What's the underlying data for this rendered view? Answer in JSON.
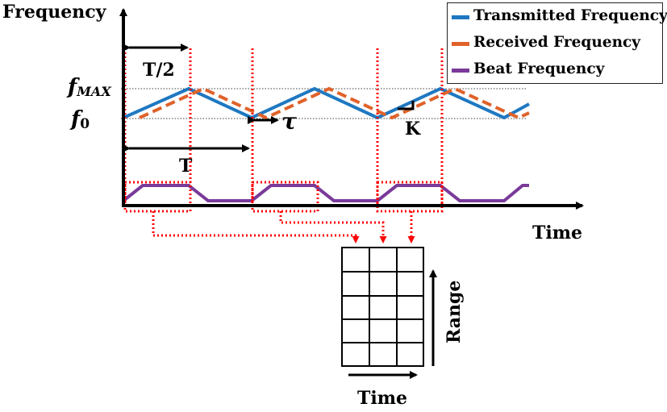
{
  "axes": {
    "y_label": "Frequency",
    "x_label": "Time"
  },
  "levels": {
    "fmax_label": "f",
    "fmax_sub": "MAX",
    "f0_label": "f",
    "f0_sub": "0"
  },
  "annotations": {
    "half_period": "T/2",
    "period": "T",
    "delay": "τ",
    "slope": "K"
  },
  "legend": {
    "items": [
      {
        "label": "Transmitted Frequency",
        "color": "#1f78c1"
      },
      {
        "label": "Received Frequency",
        "color": "#e0622a"
      },
      {
        "label": "Beat Frequency",
        "color": "#7a3a9a"
      }
    ]
  },
  "matrix": {
    "vertical_label": "Range",
    "horizontal_label": "Time",
    "rows": 5,
    "cols": 3
  },
  "colors": {
    "transmitted": "#1f78c1",
    "received": "#e0622a",
    "beat": "#7a3a9a",
    "marker": "#ff0000",
    "axis": "#000000"
  }
}
